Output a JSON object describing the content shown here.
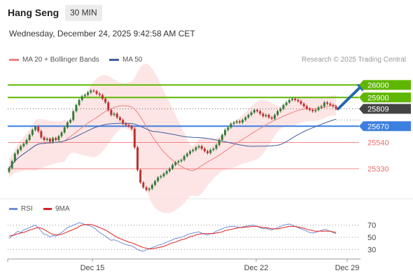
{
  "header": {
    "symbol": "Hang Seng",
    "interval": "30 MIN",
    "datetime": "Wednesday, December 24, 2025 9:42:58 AM CET"
  },
  "legend": {
    "ma20_label": "MA 20 + Bollinger Bands",
    "ma50_label": "MA 50",
    "credit": "Research © 2025 Trading Central"
  },
  "rsi_legend": {
    "rsi_label": "RSI",
    "ma_label": "9MA"
  },
  "colors": {
    "resistance": "#5fb600",
    "current": "#444444",
    "pivot": "#3d7fe0",
    "support": "#f26b6b",
    "rsi": "#6f8fd8",
    "rsi_ma": "#e02020",
    "bollinger": "#fde0e0",
    "ma20": "#f08080",
    "ma50": "#3f5f9f",
    "up_candle": "#3a7a3a",
    "down_candle": "#c03030"
  },
  "chart_data": [
    {
      "type": "candlestick",
      "y_range": [
        25100,
        26120
      ],
      "x_ticks": [
        "Dec 15",
        "Dec 22",
        "Dec 29"
      ],
      "levels": [
        {
          "value": 26000,
          "label": "26000",
          "kind": "resistance"
        },
        {
          "value": 25900,
          "label": "25900",
          "kind": "resistance"
        },
        {
          "value": 25809,
          "label": "25809",
          "kind": "current"
        },
        {
          "value": 25670,
          "label": "25670",
          "kind": "pivot"
        },
        {
          "value": 25540,
          "label": "25540",
          "kind": "support"
        },
        {
          "value": 25330,
          "label": "25330",
          "kind": "support"
        }
      ],
      "closes": [
        25335,
        25390,
        25450,
        25480,
        25510,
        25530,
        25560,
        25600,
        25640,
        25665,
        25630,
        25580,
        25560,
        25570,
        25545,
        25575,
        25560,
        25590,
        25620,
        25660,
        25700,
        25720,
        25790,
        25840,
        25880,
        25910,
        25920,
        25940,
        25955,
        25950,
        25930,
        25920,
        25890,
        25860,
        25800,
        25760,
        25770,
        25740,
        25720,
        25690,
        25680,
        25670,
        25650,
        25500,
        25320,
        25220,
        25180,
        25160,
        25170,
        25200,
        25230,
        25260,
        25270,
        25290,
        25310,
        25330,
        25360,
        25380,
        25390,
        25400,
        25430,
        25450,
        25470,
        25480,
        25500,
        25510,
        25490,
        25470,
        25455,
        25480,
        25490,
        25520,
        25560,
        25600,
        25640,
        25660,
        25690,
        25700,
        25710,
        25700,
        25720,
        25740,
        25760,
        25780,
        25800,
        25790,
        25770,
        25750,
        25760,
        25740,
        25730,
        25760,
        25790,
        25810,
        25840,
        25860,
        25880,
        25890,
        25880,
        25870,
        25850,
        25830,
        25810,
        25800,
        25790,
        25800,
        25820,
        25830,
        25860,
        25850,
        25840,
        25830,
        25809
      ],
      "rsi": {
        "levels": [
          70,
          50,
          30
        ],
        "rsi_values": [
          48,
          52,
          56,
          60,
          58,
          62,
          64,
          66,
          68,
          70,
          66,
          60,
          55,
          54,
          50,
          53,
          52,
          55,
          58,
          62,
          66,
          68,
          70,
          72,
          74,
          73,
          71,
          70,
          68,
          66,
          62,
          58,
          55,
          52,
          48,
          45,
          46,
          44,
          42,
          40,
          38,
          37,
          36,
          33,
          30,
          28,
          27,
          29,
          31,
          33,
          35,
          37,
          38,
          40,
          42,
          44,
          46,
          48,
          49,
          50,
          52,
          54,
          56,
          57,
          58,
          59,
          57,
          55,
          54,
          56,
          57,
          60,
          62,
          64,
          66,
          67,
          68,
          68,
          67,
          66,
          67,
          68,
          69,
          70,
          70,
          68,
          66,
          64,
          65,
          63,
          62,
          64,
          66,
          68,
          70,
          71,
          72,
          70,
          68,
          66,
          64,
          62,
          60,
          58,
          57,
          58,
          60,
          61,
          63,
          62,
          60,
          58,
          56
        ],
        "ma_values": [
          52,
          53,
          54,
          56,
          57,
          58,
          60,
          62,
          63,
          65,
          66,
          65,
          63,
          60,
          57,
          55,
          54,
          54,
          55,
          57,
          59,
          61,
          63,
          65,
          68,
          70,
          71,
          71,
          71,
          70,
          68,
          66,
          64,
          62,
          59,
          56,
          53,
          50,
          48,
          46,
          44,
          42,
          41,
          39,
          37,
          35,
          33,
          32,
          31,
          31,
          32,
          33,
          34,
          35,
          37,
          39,
          41,
          42,
          44,
          46,
          47,
          49,
          51,
          52,
          54,
          55,
          56,
          56,
          56,
          56,
          56,
          57,
          58,
          59,
          61,
          62,
          63,
          64,
          65,
          66,
          66,
          67,
          67,
          68,
          68,
          68,
          67,
          66,
          66,
          65,
          64,
          64,
          64,
          65,
          66,
          67,
          68,
          68,
          68,
          67,
          66,
          65,
          63,
          62,
          61,
          60,
          60,
          60,
          60,
          60,
          60,
          59,
          58
        ]
      }
    }
  ]
}
